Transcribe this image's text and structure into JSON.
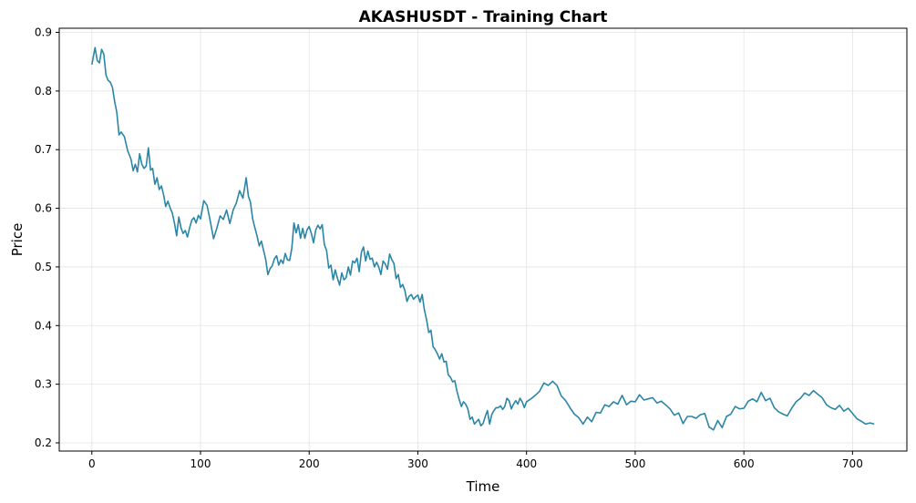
{
  "chart_data": {
    "type": "line",
    "title": "AKASHUSDT - Training Chart",
    "xlabel": "Time",
    "ylabel": "Price",
    "xlim": [
      -30,
      750
    ],
    "ylim": [
      0.186,
      0.907
    ],
    "xticks": [
      0,
      100,
      200,
      300,
      400,
      500,
      600,
      700
    ],
    "yticks": [
      0.2,
      0.3,
      0.4,
      0.5,
      0.6,
      0.7,
      0.8,
      0.9
    ],
    "xtick_labels": [
      "0",
      "100",
      "200",
      "300",
      "400",
      "500",
      "600",
      "700"
    ],
    "ytick_labels": [
      "0.2",
      "0.3",
      "0.4",
      "0.5",
      "0.6",
      "0.7",
      "0.8",
      "0.9"
    ],
    "grid": true,
    "series": [
      {
        "color": "#2a86a6",
        "x": [
          0,
          3,
          5,
          7,
          9,
          11,
          13,
          15,
          17,
          19,
          21,
          23,
          25,
          27,
          30,
          33,
          36,
          38,
          40,
          42,
          44,
          46,
          48,
          50,
          52,
          54,
          56,
          58,
          60,
          62,
          64,
          66,
          68,
          70,
          72,
          74,
          76,
          78,
          80,
          82,
          84,
          86,
          88,
          90,
          92,
          94,
          96,
          98,
          100,
          103,
          106,
          109,
          112,
          115,
          118,
          121,
          124,
          127,
          130,
          133,
          136,
          139,
          142,
          144,
          146,
          148,
          150,
          152,
          154,
          156,
          158,
          160,
          162,
          164,
          166,
          168,
          170,
          172,
          174,
          176,
          178,
          180,
          182,
          184,
          186,
          188,
          190,
          192,
          194,
          196,
          198,
          200,
          202,
          204,
          206,
          208,
          210,
          212,
          214,
          216,
          218,
          220,
          222,
          224,
          226,
          228,
          230,
          232,
          234,
          236,
          238,
          240,
          242,
          244,
          246,
          248,
          250,
          252,
          254,
          256,
          258,
          260,
          262,
          264,
          266,
          268,
          270,
          272,
          274,
          276,
          278,
          280,
          282,
          284,
          286,
          288,
          290,
          292,
          294,
          296,
          298,
          300,
          302,
          304,
          306,
          308,
          310,
          312,
          314,
          316,
          318,
          320,
          322,
          324,
          326,
          328,
          330,
          332,
          334,
          336,
          338,
          340,
          342,
          344,
          346,
          348,
          350,
          352,
          354,
          356,
          358,
          360,
          362,
          364,
          366,
          368,
          370,
          372,
          374,
          376,
          378,
          380,
          382,
          384,
          386,
          388,
          390,
          392,
          394,
          396,
          398,
          400,
          404,
          408,
          412,
          416,
          420,
          424,
          428,
          432,
          436,
          440,
          444,
          448,
          452,
          456,
          460,
          464,
          468,
          472,
          476,
          480,
          484,
          488,
          492,
          496,
          500,
          504,
          508,
          512,
          516,
          520,
          524,
          528,
          532,
          536,
          540,
          544,
          548,
          552,
          556,
          560,
          564,
          568,
          572,
          576,
          580,
          584,
          588,
          592,
          596,
          600,
          604,
          608,
          612,
          616,
          620,
          624,
          628,
          632,
          636,
          640,
          644,
          648,
          652,
          656,
          660,
          664,
          668,
          672,
          676,
          680,
          684,
          688,
          692,
          696,
          700,
          704,
          708,
          712,
          716,
          720
        ],
        "y": [
          0.845,
          0.874,
          0.852,
          0.848,
          0.871,
          0.863,
          0.827,
          0.818,
          0.815,
          0.806,
          0.782,
          0.763,
          0.725,
          0.73,
          0.722,
          0.698,
          0.684,
          0.664,
          0.675,
          0.662,
          0.693,
          0.675,
          0.668,
          0.672,
          0.703,
          0.665,
          0.668,
          0.641,
          0.652,
          0.632,
          0.638,
          0.623,
          0.603,
          0.612,
          0.601,
          0.592,
          0.575,
          0.553,
          0.585,
          0.567,
          0.557,
          0.562,
          0.551,
          0.567,
          0.58,
          0.584,
          0.575,
          0.588,
          0.582,
          0.613,
          0.605,
          0.578,
          0.548,
          0.566,
          0.587,
          0.581,
          0.597,
          0.574,
          0.597,
          0.609,
          0.63,
          0.617,
          0.652,
          0.621,
          0.61,
          0.582,
          0.567,
          0.553,
          0.536,
          0.544,
          0.528,
          0.513,
          0.487,
          0.497,
          0.502,
          0.514,
          0.519,
          0.503,
          0.512,
          0.506,
          0.523,
          0.512,
          0.511,
          0.532,
          0.575,
          0.558,
          0.572,
          0.549,
          0.566,
          0.549,
          0.563,
          0.569,
          0.557,
          0.541,
          0.563,
          0.571,
          0.565,
          0.572,
          0.538,
          0.528,
          0.498,
          0.503,
          0.478,
          0.495,
          0.481,
          0.469,
          0.49,
          0.478,
          0.482,
          0.5,
          0.486,
          0.51,
          0.507,
          0.515,
          0.492,
          0.525,
          0.534,
          0.51,
          0.527,
          0.513,
          0.515,
          0.5,
          0.508,
          0.5,
          0.487,
          0.51,
          0.505,
          0.496,
          0.522,
          0.513,
          0.506,
          0.48,
          0.487,
          0.465,
          0.47,
          0.46,
          0.441,
          0.45,
          0.453,
          0.445,
          0.449,
          0.452,
          0.44,
          0.453,
          0.427,
          0.41,
          0.388,
          0.392,
          0.364,
          0.359,
          0.352,
          0.343,
          0.352,
          0.338,
          0.339,
          0.316,
          0.312,
          0.304,
          0.306,
          0.288,
          0.274,
          0.262,
          0.27,
          0.266,
          0.258,
          0.24,
          0.244,
          0.232,
          0.236,
          0.24,
          0.229,
          0.233,
          0.245,
          0.255,
          0.232,
          0.248,
          0.255,
          0.26,
          0.26,
          0.263,
          0.257,
          0.262,
          0.276,
          0.272,
          0.258,
          0.266,
          0.272,
          0.266,
          0.276,
          0.27,
          0.26,
          0.27,
          0.275,
          0.281,
          0.288,
          0.302,
          0.298,
          0.305,
          0.298,
          0.28,
          0.272,
          0.26,
          0.249,
          0.243,
          0.232,
          0.244,
          0.236,
          0.252,
          0.251,
          0.265,
          0.262,
          0.27,
          0.266,
          0.281,
          0.265,
          0.271,
          0.27,
          0.282,
          0.273,
          0.275,
          0.277,
          0.268,
          0.271,
          0.265,
          0.258,
          0.247,
          0.251,
          0.233,
          0.245,
          0.245,
          0.242,
          0.248,
          0.25,
          0.227,
          0.222,
          0.238,
          0.226,
          0.245,
          0.249,
          0.262,
          0.258,
          0.259,
          0.271,
          0.275,
          0.27,
          0.286,
          0.272,
          0.276,
          0.26,
          0.253,
          0.249,
          0.246,
          0.259,
          0.27,
          0.276,
          0.285,
          0.281,
          0.289,
          0.283,
          0.277,
          0.265,
          0.26,
          0.257,
          0.264,
          0.254,
          0.259,
          0.25,
          0.241,
          0.237,
          0.232,
          0.234,
          0.232
        ]
      }
    ]
  }
}
